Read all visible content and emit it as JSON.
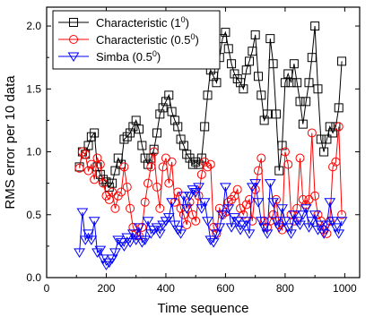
{
  "chart_data": {
    "type": "line",
    "xlabel": "Time sequence",
    "ylabel": "RMS error per 10 data",
    "xlim": [
      0,
      1050
    ],
    "ylim": [
      0,
      2.15
    ],
    "xticks": [
      "0",
      "200",
      "400",
      "600",
      "800",
      "1000"
    ],
    "yticks": [
      "0.0",
      "0.5",
      "1.0",
      "1.5",
      "2.0"
    ],
    "grid": false,
    "legend_position": "top-left",
    "series": [
      {
        "name": "Characteristic (1",
        "superscript": "0",
        "suffix": ")",
        "color": "#000000",
        "marker": "square",
        "x": [
          110,
          120,
          130,
          140,
          150,
          160,
          170,
          180,
          190,
          200,
          210,
          220,
          230,
          240,
          250,
          260,
          270,
          280,
          290,
          300,
          310,
          320,
          330,
          340,
          350,
          360,
          370,
          380,
          390,
          400,
          410,
          420,
          430,
          440,
          450,
          460,
          470,
          480,
          490,
          500,
          510,
          520,
          530,
          540,
          550,
          560,
          570,
          580,
          590,
          600,
          610,
          620,
          630,
          640,
          650,
          660,
          670,
          680,
          690,
          700,
          710,
          720,
          730,
          740,
          750,
          760,
          770,
          780,
          790,
          800,
          810,
          820,
          830,
          840,
          850,
          860,
          870,
          880,
          890,
          900,
          910,
          920,
          930,
          940,
          950,
          960,
          970,
          980,
          990
        ],
        "y": [
          0.88,
          1.0,
          0.98,
          1.05,
          1.12,
          1.15,
          0.88,
          0.82,
          0.78,
          0.76,
          0.72,
          0.75,
          0.85,
          0.95,
          0.9,
          1.1,
          1.12,
          1.15,
          1.2,
          1.25,
          1.18,
          1.05,
          0.95,
          0.9,
          0.95,
          1.02,
          1.15,
          1.3,
          1.35,
          1.4,
          1.45,
          1.32,
          1.25,
          1.2,
          1.1,
          1.05,
          0.98,
          0.95,
          0.9,
          0.92,
          0.9,
          0.95,
          1.2,
          1.45,
          1.65,
          1.6,
          1.55,
          1.75,
          1.9,
          1.95,
          1.82,
          1.7,
          1.62,
          1.58,
          1.55,
          1.5,
          1.65,
          1.72,
          1.8,
          1.93,
          1.6,
          1.45,
          1.25,
          1.3,
          1.9,
          1.7,
          1.3,
          0.85,
          1.05,
          1.55,
          1.62,
          1.55,
          1.7,
          1.55,
          1.4,
          1.22,
          1.4,
          1.55,
          1.75,
          2.0,
          1.5,
          1.1,
          1.0,
          1.1,
          1.2,
          1.15,
          1.2,
          1.35,
          1.72
        ]
      },
      {
        "name": "Characteristic (0.5",
        "superscript": "0",
        "suffix": ")",
        "color": "#ff0000",
        "marker": "circle",
        "x": [
          110,
          120,
          130,
          140,
          150,
          160,
          170,
          180,
          190,
          200,
          210,
          220,
          230,
          240,
          250,
          260,
          270,
          280,
          290,
          300,
          310,
          320,
          330,
          340,
          350,
          360,
          370,
          380,
          390,
          400,
          410,
          420,
          430,
          440,
          450,
          460,
          470,
          480,
          490,
          500,
          510,
          520,
          530,
          540,
          550,
          560,
          570,
          580,
          590,
          600,
          610,
          620,
          630,
          640,
          650,
          660,
          670,
          680,
          690,
          700,
          710,
          720,
          730,
          740,
          750,
          760,
          770,
          780,
          790,
          800,
          810,
          820,
          830,
          840,
          850,
          860,
          870,
          880,
          890,
          900,
          910,
          920,
          930,
          940,
          950,
          960,
          970,
          980,
          990
        ],
        "y": [
          0.87,
          1.0,
          0.98,
          0.85,
          0.9,
          0.78,
          0.95,
          0.9,
          0.75,
          0.65,
          0.62,
          0.68,
          0.55,
          0.65,
          0.68,
          0.88,
          0.72,
          0.55,
          0.4,
          0.35,
          0.33,
          0.4,
          0.6,
          0.75,
          0.88,
          1.0,
          0.72,
          0.55,
          0.88,
          0.95,
          0.75,
          0.92,
          0.6,
          0.68,
          0.55,
          0.5,
          0.42,
          0.6,
          0.5,
          0.45,
          0.65,
          0.82,
          0.92,
          0.88,
          0.9,
          0.4,
          0.35,
          0.55,
          0.5,
          0.52,
          0.6,
          0.62,
          0.65,
          0.7,
          0.55,
          0.5,
          0.58,
          0.62,
          0.45,
          0.7,
          0.85,
          0.95,
          0.45,
          0.4,
          0.45,
          0.5,
          0.62,
          0.42,
          0.38,
          1.0,
          0.9,
          0.5,
          0.45,
          0.55,
          0.95,
          0.62,
          0.58,
          0.62,
          1.15,
          0.65,
          0.5,
          0.45,
          0.38,
          0.35,
          0.45,
          0.88,
          0.92,
          1.2,
          0.5
        ]
      },
      {
        "name": "Simba (0.5",
        "superscript": "0",
        "suffix": ")",
        "color": "#0000ff",
        "marker": "triangle-down",
        "x": [
          110,
          120,
          130,
          140,
          150,
          160,
          170,
          180,
          190,
          200,
          210,
          220,
          230,
          240,
          250,
          260,
          270,
          280,
          290,
          300,
          310,
          320,
          330,
          340,
          350,
          360,
          370,
          380,
          390,
          400,
          410,
          420,
          430,
          440,
          450,
          460,
          470,
          480,
          490,
          500,
          510,
          520,
          530,
          540,
          550,
          560,
          570,
          580,
          590,
          600,
          610,
          620,
          630,
          640,
          650,
          660,
          670,
          680,
          690,
          700,
          710,
          720,
          730,
          740,
          750,
          760,
          770,
          780,
          790,
          800,
          810,
          820,
          830,
          840,
          850,
          860,
          870,
          880,
          890,
          900,
          910,
          920,
          930,
          940,
          950,
          960,
          970,
          980,
          990
        ],
        "y": [
          0.2,
          0.52,
          0.3,
          0.35,
          0.3,
          0.45,
          0.2,
          0.22,
          0.15,
          0.1,
          0.12,
          0.15,
          0.2,
          0.3,
          0.28,
          0.25,
          0.32,
          0.28,
          0.35,
          0.3,
          0.4,
          0.28,
          0.3,
          0.45,
          0.35,
          0.38,
          0.4,
          0.35,
          0.42,
          0.45,
          0.48,
          0.6,
          0.42,
          0.38,
          0.35,
          0.65,
          0.55,
          0.65,
          0.7,
          0.68,
          0.72,
          0.55,
          0.6,
          0.45,
          0.3,
          0.28,
          0.35,
          0.4,
          0.5,
          0.72,
          0.55,
          0.4,
          0.48,
          0.45,
          0.38,
          0.42,
          0.45,
          0.35,
          0.72,
          0.75,
          0.6,
          0.45,
          0.4,
          0.35,
          0.75,
          0.6,
          0.45,
          0.4,
          0.55,
          0.45,
          0.4,
          0.35,
          0.5,
          0.45,
          0.42,
          0.5,
          0.55,
          0.4,
          0.45,
          0.5,
          0.38,
          0.42,
          0.35,
          0.42,
          0.6,
          0.45,
          0.4,
          0.35,
          0.45
        ]
      }
    ]
  }
}
